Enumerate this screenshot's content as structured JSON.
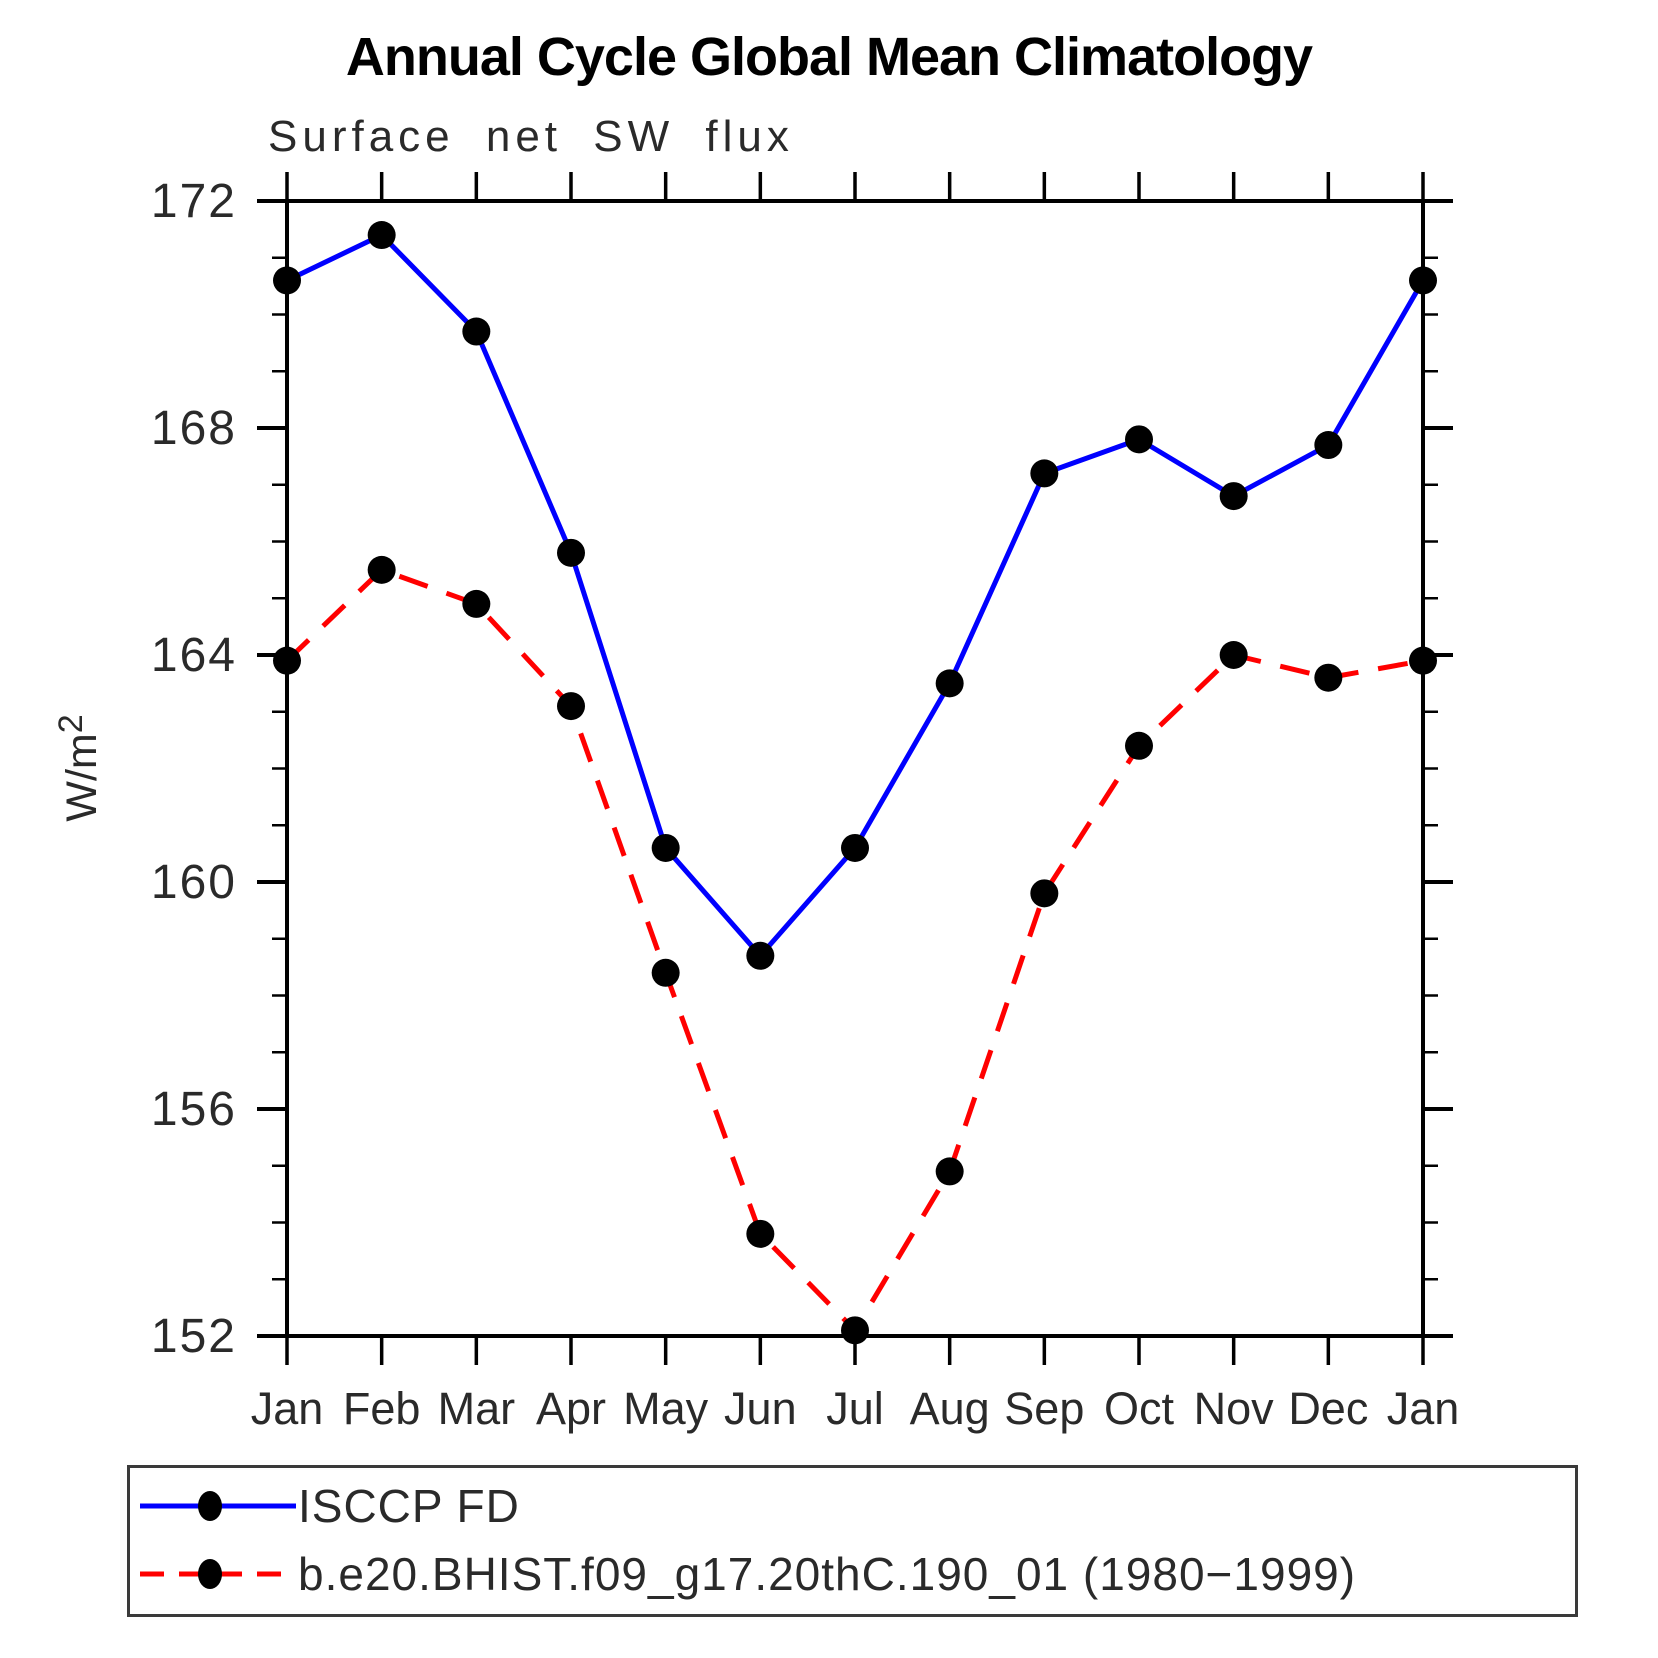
{
  "title": "Annual Cycle Global Mean Climatology",
  "chart_data": {
    "type": "line",
    "title": "Annual Cycle Global Mean Climatology",
    "subtitle": "Surface net SW flux",
    "ylabel": "W/m²",
    "xlabel": "",
    "x_categories": [
      "Jan",
      "Feb",
      "Mar",
      "Apr",
      "May",
      "Jun",
      "Jul",
      "Aug",
      "Sep",
      "Oct",
      "Nov",
      "Dec",
      "Jan"
    ],
    "ylim": [
      152,
      172
    ],
    "yticks": [
      152,
      156,
      160,
      164,
      168,
      172
    ],
    "y_minor_interval": 1,
    "grid": false,
    "legend_position": "bottom-left-box",
    "series": [
      {
        "name": "ISCCP FD",
        "line_color": "#0000ff",
        "line_style": "solid",
        "marker": "filled-circle",
        "marker_color": "#000000",
        "values": [
          170.6,
          171.4,
          169.7,
          165.8,
          160.6,
          158.7,
          160.6,
          163.5,
          167.2,
          167.8,
          166.8,
          167.7,
          170.6
        ]
      },
      {
        "name": "b.e20.BHIST.f09_g17.20thC.190_01 (1980−1999)",
        "line_color": "#ff0000",
        "line_style": "dashed",
        "marker": "filled-circle",
        "marker_color": "#000000",
        "values": [
          163.9,
          165.5,
          164.9,
          163.1,
          158.4,
          153.8,
          152.1,
          154.9,
          159.8,
          162.4,
          164.0,
          163.6,
          163.9
        ]
      }
    ]
  }
}
